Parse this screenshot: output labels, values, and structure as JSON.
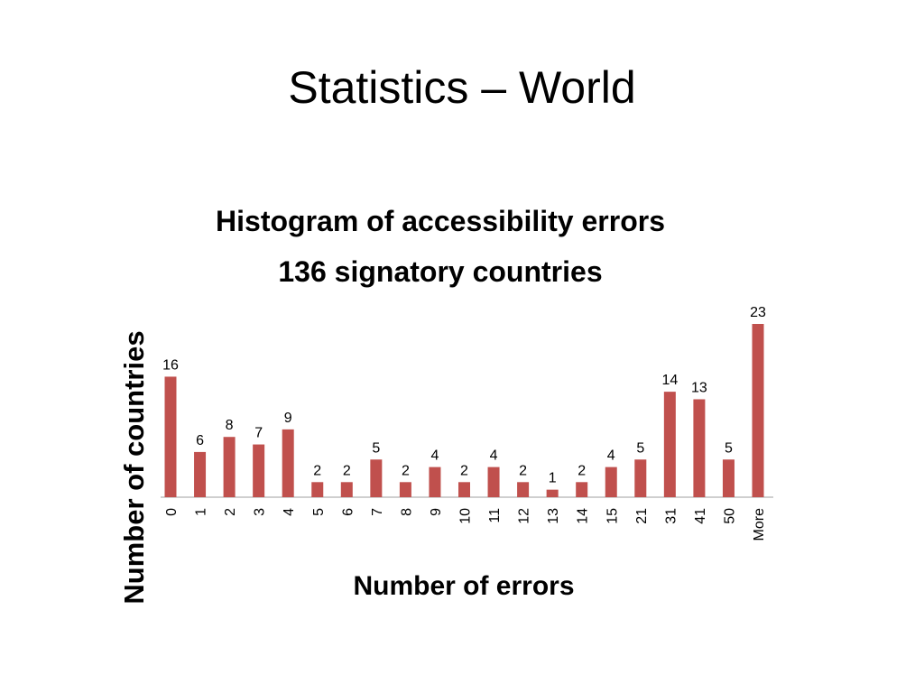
{
  "slide_title": "Statistics – World",
  "chart_data": {
    "type": "bar",
    "title": "Histogram of accessibility errors",
    "subtitle": "136 signatory countries",
    "x_label": "Number of errors",
    "y_label": "Number of countries",
    "categories": [
      "0",
      "1",
      "2",
      "3",
      "4",
      "5",
      "6",
      "7",
      "8",
      "9",
      "10",
      "11",
      "12",
      "13",
      "14",
      "15",
      "21",
      "31",
      "41",
      "50",
      "More"
    ],
    "values": [
      16,
      6,
      8,
      7,
      9,
      2,
      2,
      5,
      2,
      4,
      2,
      4,
      2,
      1,
      2,
      4,
      5,
      14,
      13,
      5,
      23
    ],
    "color": "#c0504d"
  }
}
